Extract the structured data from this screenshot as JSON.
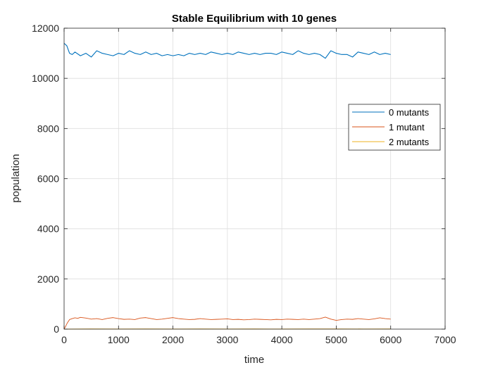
{
  "chart_data": {
    "type": "line",
    "title": "Stable Equilibrium with 10 genes",
    "xlabel": "time",
    "ylabel": "population",
    "xlim": [
      0,
      7000
    ],
    "ylim": [
      0,
      12000
    ],
    "xticks": [
      0,
      1000,
      2000,
      3000,
      4000,
      5000,
      6000,
      7000
    ],
    "yticks": [
      0,
      2000,
      4000,
      6000,
      8000,
      10000,
      12000
    ],
    "xtick_labels": [
      "0",
      "1000",
      "2000",
      "3000",
      "4000",
      "5000",
      "6000",
      "7000"
    ],
    "ytick_labels": [
      "0",
      "2000",
      "4000",
      "6000",
      "8000",
      "10000",
      "12000"
    ],
    "grid": true,
    "legend_position": "right",
    "series": [
      {
        "name": "0 mutants",
        "color": "#0072BD",
        "x": [
          0,
          50,
          100,
          150,
          200,
          300,
          400,
          500,
          600,
          700,
          800,
          900,
          1000,
          1100,
          1200,
          1300,
          1400,
          1500,
          1600,
          1700,
          1800,
          1900,
          2000,
          2100,
          2200,
          2300,
          2400,
          2500,
          2600,
          2700,
          2800,
          2900,
          3000,
          3100,
          3200,
          3300,
          3400,
          3500,
          3600,
          3700,
          3800,
          3900,
          4000,
          4100,
          4200,
          4300,
          4400,
          4500,
          4600,
          4700,
          4800,
          4900,
          5000,
          5100,
          5200,
          5300,
          5400,
          5500,
          5600,
          5700,
          5800,
          5900,
          6000
        ],
        "y": [
          11400,
          11300,
          11000,
          10950,
          11050,
          10900,
          11000,
          10850,
          11100,
          11000,
          10950,
          10900,
          11000,
          10950,
          11100,
          11000,
          10950,
          11050,
          10950,
          11000,
          10900,
          10950,
          10900,
          10950,
          10900,
          11000,
          10950,
          11000,
          10950,
          11050,
          11000,
          10950,
          11000,
          10950,
          11050,
          11000,
          10950,
          11000,
          10950,
          11000,
          11000,
          10950,
          11050,
          11000,
          10950,
          11100,
          11000,
          10950,
          11000,
          10950,
          10800,
          11100,
          11000,
          10950,
          10950,
          10850,
          11050,
          11000,
          10950,
          11050,
          10950,
          11000,
          10950
        ]
      },
      {
        "name": "1 mutant",
        "color": "#D95319",
        "x": [
          0,
          30,
          60,
          100,
          150,
          200,
          250,
          300,
          400,
          500,
          600,
          700,
          800,
          900,
          1000,
          1100,
          1200,
          1300,
          1400,
          1500,
          1600,
          1700,
          1800,
          1900,
          2000,
          2100,
          2200,
          2300,
          2400,
          2500,
          2600,
          2700,
          2800,
          2900,
          3000,
          3100,
          3200,
          3300,
          3400,
          3500,
          3600,
          3700,
          3800,
          3900,
          4000,
          4100,
          4200,
          4300,
          4400,
          4500,
          4600,
          4700,
          4800,
          4900,
          5000,
          5100,
          5200,
          5300,
          5400,
          5500,
          5600,
          5700,
          5800,
          5900,
          6000
        ],
        "y": [
          0,
          120,
          250,
          380,
          420,
          450,
          430,
          470,
          440,
          400,
          420,
          380,
          430,
          460,
          420,
          390,
          400,
          380,
          440,
          460,
          420,
          380,
          400,
          430,
          460,
          420,
          400,
          380,
          390,
          420,
          400,
          380,
          390,
          400,
          410,
          380,
          390,
          370,
          380,
          400,
          390,
          380,
          370,
          390,
          380,
          400,
          390,
          380,
          400,
          380,
          400,
          420,
          480,
          400,
          350,
          380,
          400,
          390,
          420,
          400,
          380,
          410,
          450,
          420,
          400
        ]
      },
      {
        "name": "2 mutants",
        "color": "#EDB120",
        "x": [
          0,
          500,
          1000,
          1500,
          2000,
          2500,
          3000,
          3500,
          4000,
          4500,
          5000,
          5500,
          6000
        ],
        "y": [
          0,
          8,
          5,
          10,
          6,
          8,
          5,
          7,
          6,
          8,
          10,
          6,
          8
        ]
      }
    ]
  }
}
